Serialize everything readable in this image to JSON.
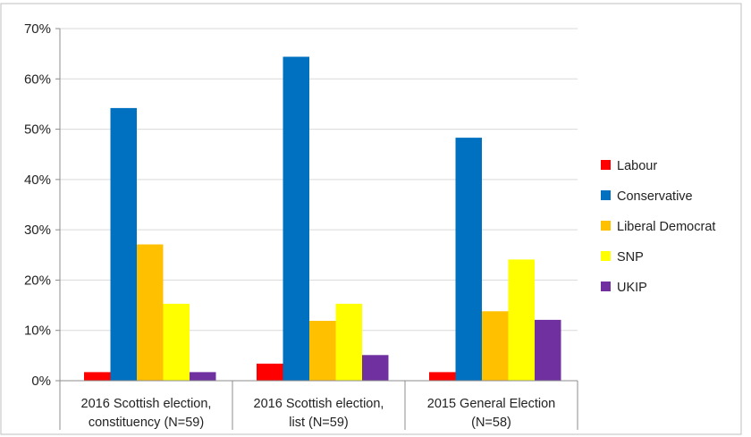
{
  "chart_data": {
    "type": "bar",
    "categories": [
      [
        "2016 Scottish election,",
        "constituency (N=59)"
      ],
      [
        "2016 Scottish election,",
        "list (N=59)"
      ],
      [
        "2015 General Election",
        "(N=58)"
      ]
    ],
    "series": [
      {
        "name": "Labour",
        "color": "#ff0000",
        "values": [
          1.7,
          3.4,
          1.7
        ]
      },
      {
        "name": "Conservative",
        "color": "#0070c0",
        "values": [
          54.2,
          64.4,
          48.3
        ]
      },
      {
        "name": "Liberal Democrat",
        "color": "#ffc000",
        "values": [
          27.1,
          11.9,
          13.8
        ]
      },
      {
        "name": "SNP",
        "color": "#ffff00",
        "values": [
          15.3,
          15.3,
          24.1
        ]
      },
      {
        "name": "UKIP",
        "color": "#7030a0",
        "values": [
          1.7,
          5.1,
          12.1
        ]
      }
    ],
    "y_ticks": [
      "0%",
      "10%",
      "20%",
      "30%",
      "40%",
      "50%",
      "60%",
      "70%"
    ],
    "ylim": [
      0,
      70
    ],
    "y_unit": "%",
    "grid": true,
    "legend": "right"
  }
}
